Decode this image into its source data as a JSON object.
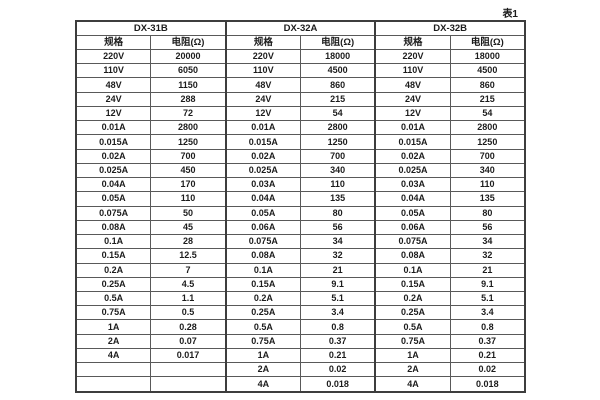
{
  "table_label": "表1",
  "table": {
    "groups": [
      {
        "name": "DX-31B",
        "col_headers": [
          "规格",
          "电阻(Ω)"
        ],
        "rows": [
          [
            "220V",
            "20000"
          ],
          [
            "110V",
            "6050"
          ],
          [
            "48V",
            "1150"
          ],
          [
            "24V",
            "288"
          ],
          [
            "12V",
            "72"
          ],
          [
            "0.01A",
            "2800"
          ],
          [
            "0.015A",
            "1250"
          ],
          [
            "0.02A",
            "700"
          ],
          [
            "0.025A",
            "450"
          ],
          [
            "0.04A",
            "170"
          ],
          [
            "0.05A",
            "110"
          ],
          [
            "0.075A",
            "50"
          ],
          [
            "0.08A",
            "45"
          ],
          [
            "0.1A",
            "28"
          ],
          [
            "0.15A",
            "12.5"
          ],
          [
            "0.2A",
            "7"
          ],
          [
            "0.25A",
            "4.5"
          ],
          [
            "0.5A",
            "1.1"
          ],
          [
            "0.75A",
            "0.5"
          ],
          [
            "1A",
            "0.28"
          ],
          [
            "2A",
            "0.07"
          ],
          [
            "4A",
            "0.017"
          ],
          [
            "",
            ""
          ],
          [
            "",
            ""
          ]
        ]
      },
      {
        "name": "DX-32A",
        "col_headers": [
          "规格",
          "电阻(Ω)"
        ],
        "rows": [
          [
            "220V",
            "18000"
          ],
          [
            "110V",
            "4500"
          ],
          [
            "48V",
            "860"
          ],
          [
            "24V",
            "215"
          ],
          [
            "12V",
            "54"
          ],
          [
            "0.01A",
            "2800"
          ],
          [
            "0.015A",
            "1250"
          ],
          [
            "0.02A",
            "700"
          ],
          [
            "0.025A",
            "340"
          ],
          [
            "0.03A",
            "110"
          ],
          [
            "0.04A",
            "135"
          ],
          [
            "0.05A",
            "80"
          ],
          [
            "0.06A",
            "56"
          ],
          [
            "0.075A",
            "34"
          ],
          [
            "0.08A",
            "32"
          ],
          [
            "0.1A",
            "21"
          ],
          [
            "0.15A",
            "9.1"
          ],
          [
            "0.2A",
            "5.1"
          ],
          [
            "0.25A",
            "3.4"
          ],
          [
            "0.5A",
            "0.8"
          ],
          [
            "0.75A",
            "0.37"
          ],
          [
            "1A",
            "0.21"
          ],
          [
            "2A",
            "0.02"
          ],
          [
            "4A",
            "0.018"
          ]
        ]
      },
      {
        "name": "DX-32B",
        "col_headers": [
          "规格",
          "电阻(Ω)"
        ],
        "rows": [
          [
            "220V",
            "18000"
          ],
          [
            "110V",
            "4500"
          ],
          [
            "48V",
            "860"
          ],
          [
            "24V",
            "215"
          ],
          [
            "12V",
            "54"
          ],
          [
            "0.01A",
            "2800"
          ],
          [
            "0.015A",
            "1250"
          ],
          [
            "0.02A",
            "700"
          ],
          [
            "0.025A",
            "340"
          ],
          [
            "0.03A",
            "110"
          ],
          [
            "0.04A",
            "135"
          ],
          [
            "0.05A",
            "80"
          ],
          [
            "0.06A",
            "56"
          ],
          [
            "0.075A",
            "34"
          ],
          [
            "0.08A",
            "32"
          ],
          [
            "0.1A",
            "21"
          ],
          [
            "0.15A",
            "9.1"
          ],
          [
            "0.2A",
            "5.1"
          ],
          [
            "0.25A",
            "3.4"
          ],
          [
            "0.5A",
            "0.8"
          ],
          [
            "0.75A",
            "0.37"
          ],
          [
            "1A",
            "0.21"
          ],
          [
            "2A",
            "0.02"
          ],
          [
            "4A",
            "0.018"
          ]
        ]
      }
    ]
  }
}
